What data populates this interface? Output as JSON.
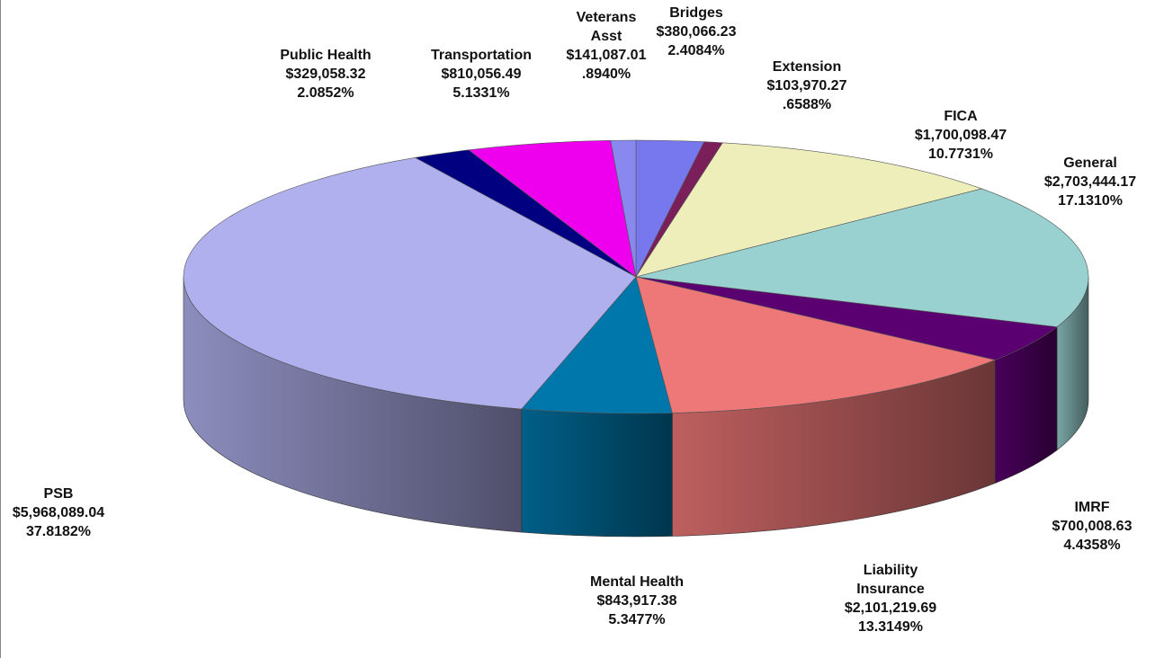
{
  "chart_data": {
    "type": "pie3d",
    "categories": [
      "Bridges",
      "Extension",
      "FICA",
      "General",
      "IMRF",
      "Liability Insurance",
      "Mental Health",
      "PSB",
      "Public Health",
      "Transportation",
      "Veterans Asst"
    ],
    "values": [
      380066.23,
      103970.27,
      1700098.47,
      2703444.17,
      700008.63,
      2101219.69,
      843917.38,
      5968089.04,
      329058.32,
      810056.49,
      141087.01
    ],
    "value_labels": [
      "$380,066.23",
      "$103,970.27",
      "$1,700,098.47",
      "$2,703,444.17",
      "$700,008.63",
      "$2,101,219.69",
      "$843,917.38",
      "$5,968,089.04",
      "$329,058.32",
      "$810,056.49",
      "$141,087.01"
    ],
    "percents": [
      2.4084,
      0.6588,
      10.7731,
      17.131,
      4.4358,
      13.3149,
      5.3477,
      37.8182,
      2.0852,
      5.1331,
      0.894
    ],
    "percent_labels": [
      "2.4084%",
      ".6588%",
      "10.7731%",
      "17.1310%",
      "4.4358%",
      "13.3149%",
      "5.3477%",
      "37.8182%",
      "2.0852%",
      "5.1331%",
      ".8940%"
    ],
    "colors": [
      "#7777ee",
      "#7a1f5a",
      "#eeeebb",
      "#99d0d0",
      "#5a0070",
      "#ee7777",
      "#0077aa",
      "#b0b0ee",
      "#000080",
      "#ee00ee",
      "#8888ee"
    ]
  }
}
